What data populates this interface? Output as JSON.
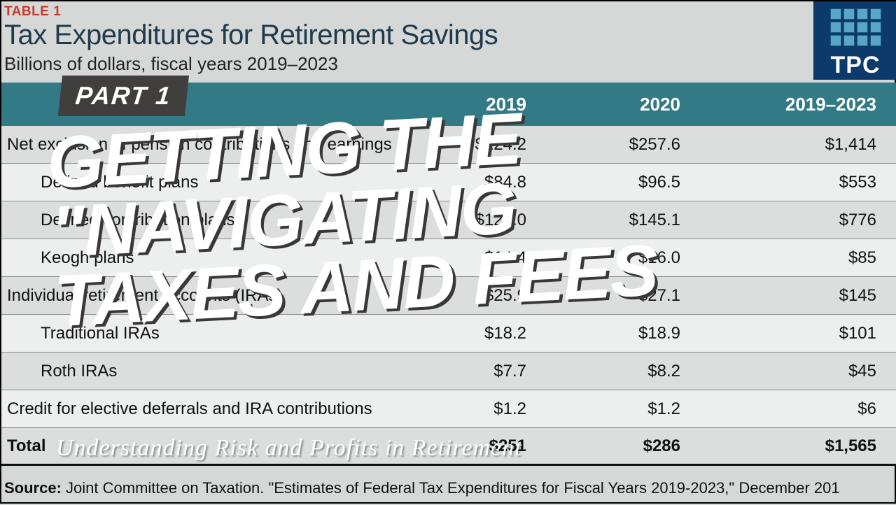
{
  "thumbnail": {
    "table_label": "TABLE 1",
    "title": "Tax Expenditures for Retirement Savings",
    "subtitle": "Billions of dollars, fiscal years 2019–2023",
    "logo_text": "TPC",
    "colors": {
      "accent_red": "#c53a2a",
      "title_navy": "#1f3a4d",
      "header_teal": "#327a86",
      "logo_bg": "#0b3a6b",
      "logo_cell": "#5aa6c9",
      "row_bg": "#dcdede",
      "row_alt_bg": "#edefef",
      "row_border": "#8a8c8c",
      "body_bg": "#d6d8d8",
      "overlay_badge_bg": "#413f3d",
      "overlay_text": "#ffffff",
      "headline_shadow": "#3a3836"
    },
    "columns": [
      "type",
      "2019",
      "2020",
      "2019–2023"
    ],
    "rows": [
      {
        "label": "Net exclusion of pension contributions and earnings",
        "indent": false,
        "a": "$224.2",
        "b": "$257.6",
        "c": "$1,414",
        "alt": false
      },
      {
        "label": "Defined benefit plans",
        "indent": true,
        "a": "$84.8",
        "b": "$96.5",
        "c": "$553",
        "alt": true
      },
      {
        "label": "Defined contribution plans",
        "indent": true,
        "a": "$125.0",
        "b": "$145.1",
        "c": "$776",
        "alt": false
      },
      {
        "label": "Keogh plans",
        "indent": true,
        "a": "$14.4",
        "b": "$16.0",
        "c": "$85",
        "alt": true
      },
      {
        "label": "Individual retirement accounts (IRAs)",
        "indent": false,
        "a": "$25.9",
        "b": "$27.1",
        "c": "$145",
        "alt": false
      },
      {
        "label": "Traditional IRAs",
        "indent": true,
        "a": "$18.2",
        "b": "$18.9",
        "c": "$101",
        "alt": true
      },
      {
        "label": "Roth IRAs",
        "indent": true,
        "a": "$7.7",
        "b": "$8.2",
        "c": "$45",
        "alt": false
      },
      {
        "label": "Credit for elective deferrals and IRA contributions",
        "indent": false,
        "a": "$1.2",
        "b": "$1.2",
        "c": "$6",
        "alt": true
      }
    ],
    "total_row": {
      "label": "Total",
      "a": "$251",
      "b": "$286",
      "c": "$1,565"
    },
    "source_prefix": "Source:",
    "source_text": " Joint Committee on Taxation. \"Estimates of Federal Tax Expenditures for Fiscal Years 2019-2023,\" December 201",
    "overlay": {
      "part_badge": "PART 1",
      "headline": "GETTING THE\n\"NAVIGATING\nTAXES AND FEES",
      "tagline": "Understanding Risk and Profits in Retirement",
      "headline_fontsize": 104,
      "headline_rotate_deg": -3,
      "tagline_fontsize": 34,
      "badge_fontsize": 36
    }
  }
}
